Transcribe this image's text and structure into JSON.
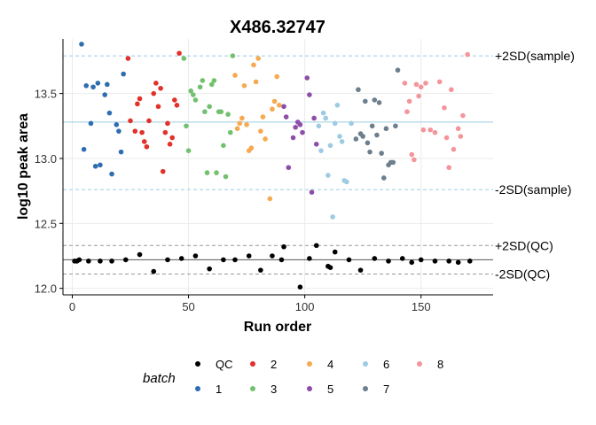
{
  "chart_data": {
    "type": "scatter",
    "title": "X486.32747",
    "xlabel": "Run order",
    "ylabel": "log10 peak area",
    "xlim": [
      -4,
      181
    ],
    "ylim": [
      11.95,
      13.92
    ],
    "x_ticks": [
      0,
      50,
      100,
      150
    ],
    "y_ticks": [
      12.0,
      12.5,
      13.0,
      13.5
    ],
    "grid": true,
    "legend": {
      "title": "batch",
      "placement": "bottom",
      "items": [
        {
          "label": "QC",
          "color": "#000000"
        },
        {
          "label": "1",
          "color": "#2E6EB0"
        },
        {
          "label": "2",
          "color": "#E2302A"
        },
        {
          "label": "3",
          "color": "#72C16E"
        },
        {
          "label": "4",
          "color": "#F6A94F"
        },
        {
          "label": "5",
          "color": "#8C4EA8"
        },
        {
          "label": "6",
          "color": "#9DCBE3"
        },
        {
          "label": "7",
          "color": "#6D7F8D"
        },
        {
          "label": "8",
          "color": "#F4959A"
        }
      ]
    },
    "reference_lines": [
      {
        "label": "+2SD(sample)",
        "y": 13.79,
        "style": "dashed",
        "color": "#9DCBE3"
      },
      {
        "label": "",
        "y": 13.28,
        "style": "solid",
        "color": "#9DCBE3"
      },
      {
        "label": "-2SD(sample)",
        "y": 12.76,
        "style": "dashed",
        "color": "#9DCBE3"
      },
      {
        "label": "+2SD(QC)",
        "y": 12.33,
        "style": "dashed",
        "color": "#999999"
      },
      {
        "label": "",
        "y": 12.22,
        "style": "solid",
        "color": "#555555"
      },
      {
        "label": "-2SD(QC)",
        "y": 12.11,
        "style": "dashed",
        "color": "#999999"
      }
    ],
    "series": [
      {
        "name": "QC",
        "points": [
          [
            1,
            12.21
          ],
          [
            2,
            12.21
          ],
          [
            3,
            12.22
          ],
          [
            7,
            12.21
          ],
          [
            12,
            12.21
          ],
          [
            17,
            12.21
          ],
          [
            23,
            12.22
          ],
          [
            29,
            12.26
          ],
          [
            35,
            12.13
          ],
          [
            41,
            12.22
          ],
          [
            47,
            12.23
          ],
          [
            53,
            12.25
          ],
          [
            59,
            12.15
          ],
          [
            65,
            12.22
          ],
          [
            70,
            12.22
          ],
          [
            76,
            12.25
          ],
          [
            81,
            12.14
          ],
          [
            86,
            12.25
          ],
          [
            90,
            12.22
          ],
          [
            91,
            12.32
          ],
          [
            98,
            12.01
          ],
          [
            102,
            12.23
          ],
          [
            105,
            12.33
          ],
          [
            110,
            12.17
          ],
          [
            111,
            12.16
          ],
          [
            113,
            12.28
          ],
          [
            119,
            12.22
          ],
          [
            124,
            12.14
          ],
          [
            130,
            12.23
          ],
          [
            136,
            12.21
          ],
          [
            142,
            12.23
          ],
          [
            146,
            12.2
          ],
          [
            150,
            12.22
          ],
          [
            156,
            12.21
          ],
          [
            162,
            12.21
          ],
          [
            166,
            12.2
          ],
          [
            171,
            12.21
          ]
        ]
      },
      {
        "name": "1",
        "points": [
          [
            4,
            13.88
          ],
          [
            5,
            13.07
          ],
          [
            6,
            13.56
          ],
          [
            8,
            13.27
          ],
          [
            9,
            13.55
          ],
          [
            10,
            12.94
          ],
          [
            11,
            13.58
          ],
          [
            12,
            12.95
          ],
          [
            14,
            13.49
          ],
          [
            15,
            13.57
          ],
          [
            16,
            13.35
          ],
          [
            17,
            12.88
          ],
          [
            19,
            13.26
          ],
          [
            20,
            13.21
          ],
          [
            21,
            13.05
          ],
          [
            22,
            13.65
          ]
        ]
      },
      {
        "name": "2",
        "points": [
          [
            24,
            13.77
          ],
          [
            25,
            13.29
          ],
          [
            27,
            13.21
          ],
          [
            28,
            13.42
          ],
          [
            29,
            13.46
          ],
          [
            30,
            13.2
          ],
          [
            31,
            13.13
          ],
          [
            32,
            13.09
          ],
          [
            33,
            13.29
          ],
          [
            35,
            13.5
          ],
          [
            36,
            13.58
          ],
          [
            37,
            13.4
          ],
          [
            38,
            13.54
          ],
          [
            39,
            12.9
          ],
          [
            40,
            13.2
          ],
          [
            41,
            13.27
          ],
          [
            42,
            13.11
          ],
          [
            43,
            13.16
          ],
          [
            44,
            13.45
          ],
          [
            45,
            13.41
          ],
          [
            46,
            13.81
          ]
        ]
      },
      {
        "name": "3",
        "points": [
          [
            48,
            13.77
          ],
          [
            49,
            13.25
          ],
          [
            50,
            13.06
          ],
          [
            51,
            13.52
          ],
          [
            52,
            13.49
          ],
          [
            53,
            13.45
          ],
          [
            55,
            13.55
          ],
          [
            56,
            13.6
          ],
          [
            57,
            13.36
          ],
          [
            58,
            12.89
          ],
          [
            59,
            13.4
          ],
          [
            60,
            13.57
          ],
          [
            61,
            13.6
          ],
          [
            62,
            12.89
          ],
          [
            63,
            13.36
          ],
          [
            64,
            13.36
          ],
          [
            65,
            13.1
          ],
          [
            66,
            12.86
          ],
          [
            67,
            13.34
          ],
          [
            68,
            13.2
          ],
          [
            69,
            13.79
          ]
        ]
      },
      {
        "name": "4",
        "points": [
          [
            70,
            13.64
          ],
          [
            71,
            13.23
          ],
          [
            72,
            13.27
          ],
          [
            73,
            13.31
          ],
          [
            74,
            13.56
          ],
          [
            75,
            13.26
          ],
          [
            76,
            13.06
          ],
          [
            77,
            13.08
          ],
          [
            78,
            13.72
          ],
          [
            79,
            13.59
          ],
          [
            80,
            13.77
          ],
          [
            81,
            13.21
          ],
          [
            82,
            13.32
          ],
          [
            83,
            13.15
          ],
          [
            85,
            12.69
          ],
          [
            86,
            13.38
          ],
          [
            87,
            13.44
          ],
          [
            88,
            13.63
          ],
          [
            89,
            13.41
          ]
        ]
      },
      {
        "name": "5",
        "points": [
          [
            91,
            13.4
          ],
          [
            92,
            13.32
          ],
          [
            93,
            12.93
          ],
          [
            95,
            13.16
          ],
          [
            96,
            13.24
          ],
          [
            97,
            13.28
          ],
          [
            98,
            13.26
          ],
          [
            99,
            13.2
          ],
          [
            101,
            13.62
          ],
          [
            102,
            13.49
          ],
          [
            103,
            12.74
          ],
          [
            104,
            13.31
          ],
          [
            105,
            13.11
          ]
        ]
      },
      {
        "name": "6",
        "points": [
          [
            106,
            13.25
          ],
          [
            107,
            13.06
          ],
          [
            108,
            13.35
          ],
          [
            109,
            13.31
          ],
          [
            110,
            12.87
          ],
          [
            111,
            13.1
          ],
          [
            112,
            12.55
          ],
          [
            113,
            13.27
          ],
          [
            114,
            13.41
          ],
          [
            115,
            13.17
          ],
          [
            116,
            13.13
          ],
          [
            117,
            12.83
          ],
          [
            118,
            12.82
          ],
          [
            120,
            13.27
          ]
        ]
      },
      {
        "name": "7",
        "points": [
          [
            122,
            13.15
          ],
          [
            123,
            13.53
          ],
          [
            124,
            13.19
          ],
          [
            125,
            13.17
          ],
          [
            126,
            13.44
          ],
          [
            127,
            13.12
          ],
          [
            128,
            13.05
          ],
          [
            129,
            13.25
          ],
          [
            130,
            13.45
          ],
          [
            131,
            13.18
          ],
          [
            132,
            13.43
          ],
          [
            133,
            13.04
          ],
          [
            134,
            12.85
          ],
          [
            135,
            13.23
          ],
          [
            136,
            12.95
          ],
          [
            137,
            12.97
          ],
          [
            138,
            12.97
          ],
          [
            139,
            13.25
          ],
          [
            140,
            13.68
          ]
        ]
      },
      {
        "name": "8",
        "points": [
          [
            143,
            13.58
          ],
          [
            144,
            13.36
          ],
          [
            145,
            13.44
          ],
          [
            146,
            13.03
          ],
          [
            147,
            12.99
          ],
          [
            148,
            13.57
          ],
          [
            149,
            13.48
          ],
          [
            150,
            13.55
          ],
          [
            151,
            13.22
          ],
          [
            152,
            13.58
          ],
          [
            154,
            13.22
          ],
          [
            156,
            13.2
          ],
          [
            158,
            13.59
          ],
          [
            160,
            13.39
          ],
          [
            161,
            13.16
          ],
          [
            162,
            12.93
          ],
          [
            163,
            13.53
          ],
          [
            164,
            13.07
          ],
          [
            166,
            13.23
          ],
          [
            167,
            13.17
          ],
          [
            168,
            13.33
          ],
          [
            170,
            13.8
          ]
        ]
      }
    ]
  }
}
